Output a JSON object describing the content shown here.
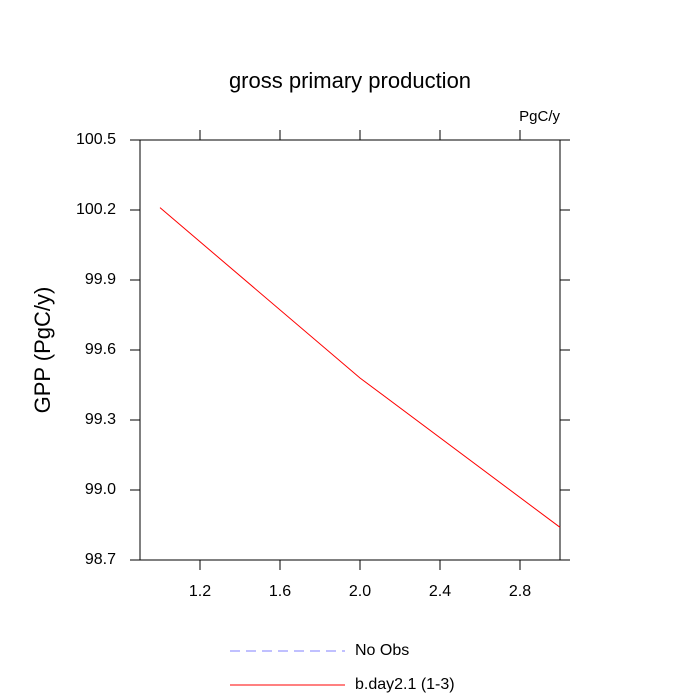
{
  "chart_data": {
    "type": "line",
    "title": "gross primary production",
    "units_label": "PgC/y",
    "y_label": "GPP  (PgC/y)",
    "x": [
      1,
      2,
      3
    ],
    "series": [
      {
        "name": "No Obs",
        "color": "#8080ff",
        "dashed": true,
        "values": [
          null,
          null,
          null
        ]
      },
      {
        "name": "b.day2.1 (1-3)",
        "color": "#ff0000",
        "dashed": false,
        "values": [
          100.21,
          99.48,
          98.84
        ]
      }
    ],
    "xlim": [
      0.9,
      3.0
    ],
    "xticks": [
      1.2,
      1.6,
      {
        "value": 2,
        "label": "2.0"
      },
      2.4,
      2.8
    ],
    "ylim": [
      98.7,
      100.5
    ],
    "yticks": [
      100.5,
      100.2,
      99.9,
      99.6,
      99.3,
      {
        "value": 99,
        "label": "99.0"
      },
      98.7
    ]
  }
}
